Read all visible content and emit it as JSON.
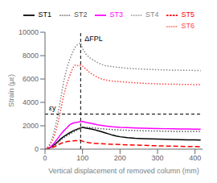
{
  "chart_data": {
    "type": "line",
    "xlabel": "Vertical displacement of removed column (mm)",
    "ylabel": "Strain (με)",
    "xlim": [
      0,
      420
    ],
    "ylim": [
      0,
      10000
    ],
    "xticks": [
      0,
      100,
      200,
      300,
      400
    ],
    "yticks": [
      0,
      2000,
      4000,
      6000,
      8000,
      10000
    ],
    "grid": false,
    "legend": "upper right",
    "annotations": [
      {
        "text": "ΔFPL",
        "x": 95
      },
      {
        "text": "εy",
        "y": 3000
      }
    ],
    "series": [
      {
        "name": "ST1",
        "color": "#000000",
        "line_style": "solid",
        "x": [
          0,
          5,
          10,
          15,
          20,
          25,
          30,
          35,
          40,
          45,
          50,
          55,
          60,
          65,
          70,
          75,
          80,
          85,
          90,
          95,
          100,
          110,
          120,
          130,
          140,
          150,
          160,
          170,
          180,
          190,
          200,
          220,
          240,
          260,
          280,
          300,
          320,
          340,
          360,
          380,
          400,
          415
        ],
        "values": [
          0,
          30,
          80,
          160,
          270,
          380,
          510,
          660,
          820,
          960,
          1080,
          1180,
          1280,
          1380,
          1470,
          1560,
          1630,
          1700,
          1760,
          1810,
          1860,
          1800,
          1740,
          1680,
          1590,
          1500,
          1400,
          1300,
          1200,
          1120,
          1060,
          980,
          930,
          900,
          880,
          860,
          840,
          820,
          810,
          800,
          790,
          780
        ]
      },
      {
        "name": "ST2",
        "color": "#555555",
        "line_style": "dotted",
        "x": [
          0,
          5,
          10,
          15,
          20,
          25,
          30,
          35,
          40,
          45,
          50,
          55,
          60,
          65,
          70,
          75,
          80,
          85,
          90,
          95,
          100,
          110,
          120,
          130,
          140,
          150,
          160,
          180,
          200,
          220,
          240,
          260,
          280,
          300,
          320,
          340,
          360,
          380,
          400,
          415
        ],
        "values": [
          0,
          20,
          60,
          130,
          220,
          320,
          440,
          580,
          720,
          860,
          980,
          1080,
          1170,
          1260,
          1350,
          1440,
          1530,
          1620,
          1710,
          1800,
          1900,
          1870,
          1840,
          1810,
          1780,
          1750,
          1720,
          1680,
          1640,
          1610,
          1590,
          1575,
          1560,
          1548,
          1535,
          1525,
          1518,
          1515,
          1512,
          1510
        ]
      },
      {
        "name": "ST3",
        "color": "#ff00ff",
        "line_style": "solid",
        "x": [
          0,
          5,
          10,
          15,
          20,
          25,
          30,
          35,
          40,
          45,
          50,
          55,
          60,
          65,
          70,
          75,
          80,
          85,
          90,
          95,
          100,
          110,
          120,
          130,
          140,
          150,
          160,
          180,
          200,
          220,
          240,
          260,
          280,
          300,
          320,
          340,
          360,
          380,
          400,
          415
        ],
        "values": [
          0,
          40,
          100,
          200,
          360,
          530,
          740,
          960,
          1180,
          1380,
          1560,
          1720,
          1880,
          2060,
          2160,
          2220,
          2270,
          2300,
          2320,
          2350,
          2380,
          2280,
          2220,
          2160,
          2090,
          2040,
          1990,
          1920,
          1870,
          1840,
          1810,
          1790,
          1775,
          1762,
          1750,
          1740,
          1730,
          1720,
          1710,
          1700
        ]
      },
      {
        "name": "ST4",
        "color": "#888888",
        "line_style": "dotted",
        "x": [
          0,
          5,
          10,
          15,
          20,
          25,
          30,
          35,
          40,
          45,
          50,
          55,
          60,
          65,
          70,
          75,
          80,
          85,
          90,
          95,
          100,
          110,
          120,
          130,
          140,
          150,
          160,
          180,
          200,
          220,
          240,
          260,
          280,
          300,
          320,
          340,
          360,
          380,
          400,
          415
        ],
        "values": [
          0,
          100,
          300,
          600,
          1000,
          1600,
          2300,
          3100,
          4000,
          4900,
          5800,
          6500,
          7100,
          7600,
          8000,
          8400,
          8700,
          8900,
          9000,
          9100,
          8600,
          8100,
          7800,
          7600,
          7400,
          7250,
          7150,
          7050,
          6980,
          6920,
          6880,
          6850,
          6820,
          6795,
          6775,
          6760,
          6750,
          6740,
          6730,
          6710
        ]
      },
      {
        "name": "ST5",
        "color": "#ff0000",
        "line_style": "dashed",
        "x": [
          0,
          5,
          10,
          15,
          20,
          25,
          30,
          35,
          40,
          45,
          50,
          55,
          60,
          65,
          70,
          75,
          80,
          85,
          90,
          95,
          100,
          110,
          120,
          130,
          140,
          150,
          160,
          180,
          200,
          220,
          240,
          260,
          280,
          300,
          320,
          340,
          360,
          380,
          400,
          415
        ],
        "values": [
          0,
          18,
          45,
          90,
          150,
          210,
          290,
          370,
          450,
          520,
          575,
          618,
          648,
          672,
          692,
          710,
          722,
          732,
          742,
          752,
          680,
          590,
          540,
          508,
          488,
          468,
          450,
          420,
          392,
          370,
          345,
          325,
          305,
          285,
          268,
          252,
          238,
          228,
          218,
          210
        ]
      },
      {
        "name": "ST6",
        "color": "#ff4444",
        "line_style": "dotted",
        "x": [
          0,
          5,
          10,
          15,
          20,
          25,
          30,
          35,
          40,
          45,
          50,
          55,
          60,
          65,
          70,
          75,
          80,
          85,
          90,
          95,
          100,
          110,
          120,
          130,
          140,
          150,
          160,
          180,
          200,
          220,
          240,
          260,
          280,
          300,
          320,
          340,
          360,
          380,
          400,
          415
        ],
        "values": [
          0,
          80,
          220,
          450,
          760,
          1160,
          1680,
          2320,
          3060,
          3880,
          4620,
          5220,
          5760,
          6200,
          6640,
          6980,
          7180,
          7200,
          7100,
          7180,
          7100,
          6820,
          6540,
          6340,
          6140,
          6020,
          5920,
          5820,
          5770,
          5720,
          5680,
          5640,
          5610,
          5580,
          5565,
          5550,
          5540,
          5532,
          5522,
          5510
        ]
      }
    ]
  }
}
